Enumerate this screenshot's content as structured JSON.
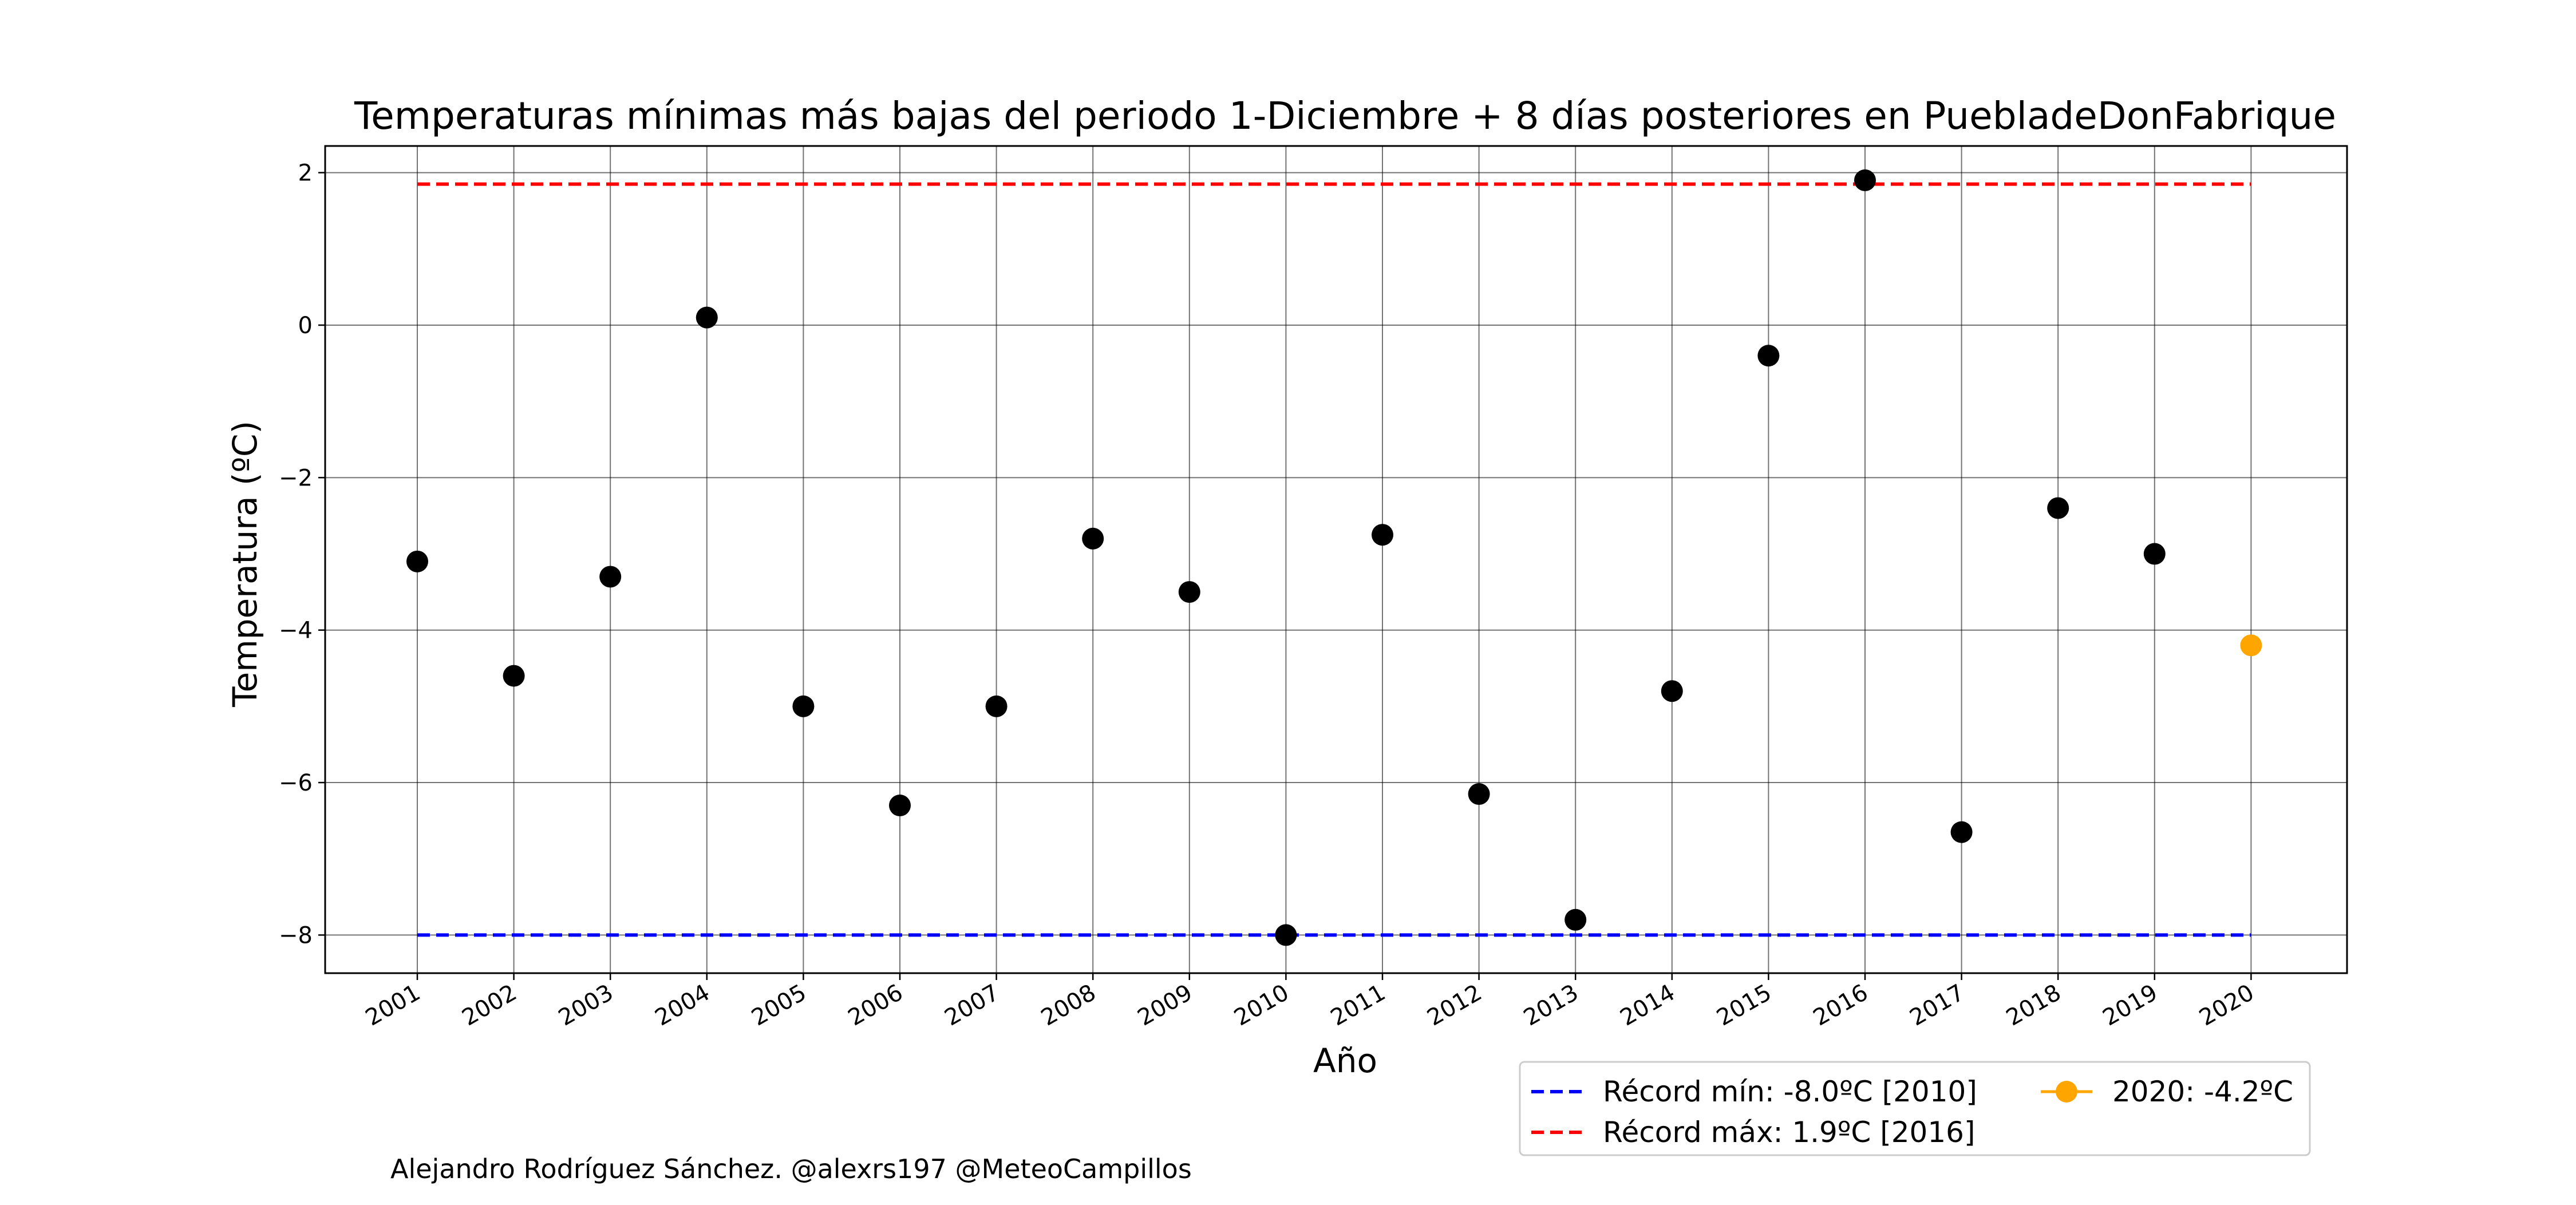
{
  "chart_data": {
    "type": "scatter",
    "title": "Temperaturas mínimas más bajas del periodo 1-Diciembre + 8 días posteriores en PuebladeDonFabrique",
    "xlabel": "Año",
    "ylabel": "Temperatura (ºC)",
    "ylim": [
      -8.5,
      2.35
    ],
    "yticks": [
      2,
      0,
      -2,
      -4,
      -6,
      -8
    ],
    "ytick_labels": [
      "2",
      "0",
      "−2",
      "−4",
      "−6",
      "−8"
    ],
    "grid": true,
    "categories": [
      "2001",
      "2002",
      "2003",
      "2004",
      "2005",
      "2006",
      "2007",
      "2008",
      "2009",
      "2010",
      "2011",
      "2012",
      "2013",
      "2014",
      "2015",
      "2016",
      "2017",
      "2018",
      "2019",
      "2020"
    ],
    "series": [
      {
        "values": [
          -3.1,
          -4.6,
          -3.3,
          0.1,
          -5.0,
          -6.3,
          -5.0,
          -2.8,
          -3.5,
          -8.0,
          -2.75,
          -6.15,
          -7.8,
          -4.8,
          -0.4,
          1.9,
          -6.65,
          -2.4,
          -3.0,
          null
        ],
        "color": "#000000"
      },
      {
        "name": "2020: -4.2ºC",
        "values": [
          null,
          null,
          null,
          null,
          null,
          null,
          null,
          null,
          null,
          null,
          null,
          null,
          null,
          null,
          null,
          null,
          null,
          null,
          null,
          -4.2
        ],
        "color": "#ffa500"
      }
    ],
    "reference_lines": [
      {
        "name": "Récord mín: -8.0ºC [2010]",
        "y": -8.0,
        "color": "#0000ff",
        "style": "dashed"
      },
      {
        "name": "Récord máx: 1.9ºC [2016]",
        "y": 1.85,
        "color": "#ff0000",
        "style": "dashed"
      }
    ],
    "legend_position": "bottom-right, below axes",
    "credit": "Alejandro Rodríguez Sánchez. @alexrs197 @MeteoCampillos"
  }
}
